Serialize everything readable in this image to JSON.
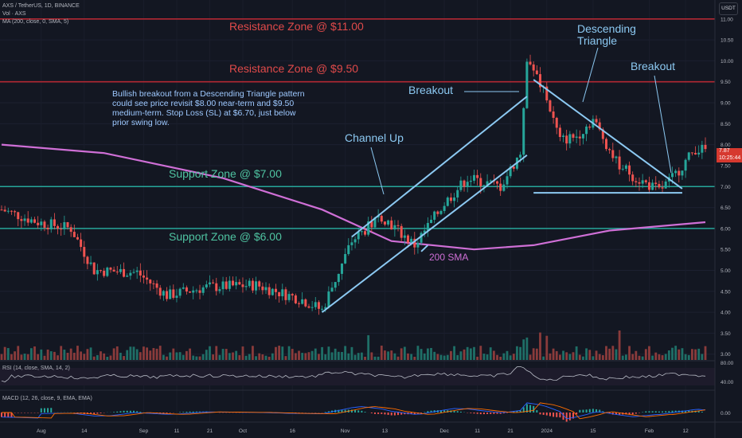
{
  "header": {
    "symbol_line": "AXS / TetherUS, 1D, BINANCE",
    "vol_line": "Vol · AXS",
    "ma_line": "MA (200, close, 0, SMA, 5)",
    "rsi_line": "RSI (14, close, SMA, 14, 2)",
    "macd_line": "MACD (12, 26, close, 9, EMA, EMA)",
    "currency_button": "USDT"
  },
  "annotations": {
    "resistance_11": "Resistance Zone @ $11.00",
    "resistance_950": "Resistance Zone @ $9.50",
    "support_7": "Support Zone @ $7.00",
    "support_6": "Support Zone @ $6.00",
    "channel_up": "Channel Up",
    "breakout_1": "Breakout",
    "breakout_2": "Breakout",
    "descending_triangle_1": "Descending",
    "descending_triangle_2": "Triangle",
    "sma_label": "200 SMA",
    "note": "Bullish breakout from a Descending Triangle pattern could see price revisit $8.00 near-term and $9.50 medium-term. Stop Loss (SL) at $6.70, just below prior swing low."
  },
  "price_box": {
    "price": "7.87",
    "timer": "10:25:44"
  },
  "colors": {
    "background": "#131722",
    "up_candle": "#26a69a",
    "down_candle": "#ef5350",
    "resistance_line": "#b22833",
    "support_line": "#26a69a",
    "trendline": "#8cc9f2",
    "sma": "#cf6fd6",
    "rsi": "#b8bcc6",
    "macd_line": "#2962ff",
    "signal_line": "#ff6d00"
  },
  "chart_data": {
    "type": "candlestick",
    "symbol": "AXS / TetherUS",
    "interval": "1D",
    "exchange": "BINANCE",
    "ylim": [
      2.9,
      11.3
    ],
    "y_ticks": [
      "11.00",
      "10.50",
      "10.00",
      "9.50",
      "9.00",
      "8.50",
      "8.00",
      "7.50",
      "7.00",
      "6.50",
      "6.00",
      "5.50",
      "5.00",
      "4.50",
      "4.00",
      "3.50",
      "3.00"
    ],
    "x_ticks": [
      {
        "label": "Aug",
        "date": "2023-08-01"
      },
      {
        "label": "14",
        "date": "2023-08-14"
      },
      {
        "label": "Sep",
        "date": "2023-09-01"
      },
      {
        "label": "11",
        "date": "2023-09-11"
      },
      {
        "label": "21",
        "date": "2023-09-21"
      },
      {
        "label": "Oct",
        "date": "2023-10-01"
      },
      {
        "label": "16",
        "date": "2023-10-16"
      },
      {
        "label": "Nov",
        "date": "2023-11-01"
      },
      {
        "label": "13",
        "date": "2023-11-13"
      },
      {
        "label": "Dec",
        "date": "2023-12-01"
      },
      {
        "label": "11",
        "date": "2023-12-11"
      },
      {
        "label": "21",
        "date": "2023-12-21"
      },
      {
        "label": "2024",
        "date": "2024-01-01"
      },
      {
        "label": "15",
        "date": "2024-01-15"
      },
      {
        "label": "Feb",
        "date": "2024-02-01"
      },
      {
        "label": "12",
        "date": "2024-02-12"
      }
    ],
    "close_path": [
      {
        "date": "2023-07-20",
        "close": 6.45
      },
      {
        "date": "2023-07-31",
        "close": 6.15
      },
      {
        "date": "2023-08-10",
        "close": 6.0
      },
      {
        "date": "2023-08-17",
        "close": 5.0
      },
      {
        "date": "2023-08-30",
        "close": 4.95
      },
      {
        "date": "2023-09-08",
        "close": 4.4
      },
      {
        "date": "2023-09-20",
        "close": 4.6
      },
      {
        "date": "2023-10-05",
        "close": 4.65
      },
      {
        "date": "2023-10-19",
        "close": 4.3
      },
      {
        "date": "2023-10-25",
        "close": 4.05
      },
      {
        "date": "2023-11-03",
        "close": 5.7
      },
      {
        "date": "2023-11-12",
        "close": 6.3
      },
      {
        "date": "2023-11-22",
        "close": 5.6
      },
      {
        "date": "2023-12-01",
        "close": 6.6
      },
      {
        "date": "2023-12-08",
        "close": 7.2
      },
      {
        "date": "2023-12-18",
        "close": 7.0
      },
      {
        "date": "2023-12-24",
        "close": 7.8
      },
      {
        "date": "2023-12-26",
        "close": 10.1
      },
      {
        "date": "2024-01-01",
        "close": 9.1
      },
      {
        "date": "2024-01-05",
        "close": 8.1
      },
      {
        "date": "2024-01-10",
        "close": 8.2
      },
      {
        "date": "2024-01-15",
        "close": 8.6
      },
      {
        "date": "2024-01-22",
        "close": 7.6
      },
      {
        "date": "2024-01-28",
        "close": 7.2
      },
      {
        "date": "2024-02-04",
        "close": 6.9
      },
      {
        "date": "2024-02-08",
        "close": 7.2
      },
      {
        "date": "2024-02-15",
        "close": 7.9
      },
      {
        "date": "2024-02-18",
        "close": 7.87
      }
    ],
    "sma_200": [
      {
        "date": "2023-07-20",
        "value": 8.0
      },
      {
        "date": "2023-08-20",
        "value": 7.8
      },
      {
        "date": "2023-09-25",
        "value": 7.2
      },
      {
        "date": "2023-10-25",
        "value": 6.45
      },
      {
        "date": "2023-11-15",
        "value": 5.7
      },
      {
        "date": "2023-12-10",
        "value": 5.5
      },
      {
        "date": "2023-12-28",
        "value": 5.6
      },
      {
        "date": "2024-01-20",
        "value": 5.95
      },
      {
        "date": "2024-02-18",
        "value": 6.15
      }
    ],
    "levels": [
      {
        "label": "Resistance Zone @ $11.00",
        "value": 11.0
      },
      {
        "label": "Resistance Zone @ $9.50",
        "value": 9.5
      },
      {
        "label": "Support Zone @ $7.00",
        "value": 7.0
      },
      {
        "label": "Support Zone @ $6.00",
        "value": 6.0
      }
    ],
    "stop_loss": 6.7,
    "targets": [
      8.0,
      9.5
    ],
    "last_price": 7.87,
    "rsi": {
      "ticks": [
        "80.00",
        "40.00"
      ]
    },
    "macd": {
      "ticks": [
        "0.00"
      ]
    }
  }
}
